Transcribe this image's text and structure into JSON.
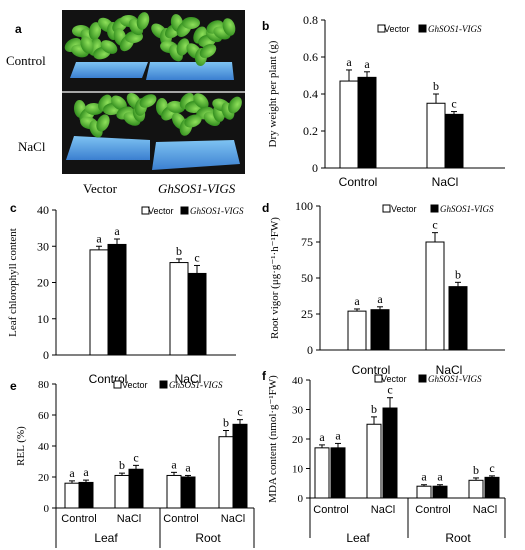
{
  "panel_a": {
    "letter": "a",
    "row_labels": [
      "Control",
      "NaCl"
    ],
    "column_labels": [
      "Vector",
      "GhSOS1-VIGS"
    ]
  },
  "chart_data": [
    {
      "panel": "b",
      "type": "bar",
      "ylabel": "Dry weight per plant (g)",
      "ylim": [
        0,
        0.8
      ],
      "yticks": [
        0,
        0.2,
        0.4,
        0.6,
        0.8
      ],
      "ytick_labels": [
        "0",
        "0.2",
        "0.4",
        "0.6",
        "0.8"
      ],
      "categories": [
        "Control",
        "NaCl"
      ],
      "legend": "top-right",
      "series": [
        {
          "name": "Vector",
          "color": "#ffffff",
          "values": [
            0.47,
            0.35
          ],
          "errors": [
            0.06,
            0.05
          ],
          "letters": [
            "a",
            "b"
          ]
        },
        {
          "name": "GhSOS1-VIGS",
          "color": "#000000",
          "values": [
            0.49,
            0.29
          ],
          "errors": [
            0.03,
            0.015
          ],
          "letters": [
            "a",
            "c"
          ]
        }
      ]
    },
    {
      "panel": "c",
      "type": "bar",
      "ylabel": "Leaf chlorophyll content",
      "ylim": [
        0,
        40
      ],
      "yticks": [
        0,
        10,
        20,
        30,
        40
      ],
      "ytick_labels": [
        "0",
        "10",
        "20",
        "30",
        "40"
      ],
      "categories": [
        "Control",
        "NaCl"
      ],
      "legend": "top-right",
      "series": [
        {
          "name": "Vector",
          "color": "#ffffff",
          "values": [
            29,
            25.5
          ],
          "errors": [
            1.0,
            1.0
          ],
          "letters": [
            "a",
            "b"
          ]
        },
        {
          "name": "GhSOS1-VIGS",
          "color": "#000000",
          "values": [
            30.5,
            22.5
          ],
          "errors": [
            1.5,
            2.2
          ],
          "letters": [
            "a",
            "c"
          ]
        }
      ]
    },
    {
      "panel": "d",
      "type": "bar",
      "ylabel": "Root vigor (μg·g⁻¹·h⁻¹FW)",
      "ylim": [
        0,
        100
      ],
      "yticks": [
        0,
        25,
        50,
        75,
        100
      ],
      "ytick_labels": [
        "0",
        "25",
        "50",
        "75",
        "100"
      ],
      "categories": [
        "Control",
        "NaCl"
      ],
      "legend": "top-right",
      "series": [
        {
          "name": "Vector",
          "color": "#ffffff",
          "values": [
            27,
            75
          ],
          "errors": [
            1.5,
            6.5
          ],
          "letters": [
            "a",
            "c"
          ]
        },
        {
          "name": "GhSOS1-VIGS",
          "color": "#000000",
          "values": [
            28,
            44
          ],
          "errors": [
            2.0,
            3.0
          ],
          "letters": [
            "a",
            "b"
          ]
        }
      ]
    },
    {
      "panel": "e",
      "type": "bar",
      "ylabel": "REL (%)",
      "ylim": [
        0,
        80
      ],
      "yticks": [
        0,
        20,
        40,
        60,
        80
      ],
      "ytick_labels": [
        "0",
        "20",
        "40",
        "60",
        "80"
      ],
      "categories": [
        "Control",
        "NaCl",
        "Control",
        "NaCl"
      ],
      "groups": [
        "Leaf",
        "Root"
      ],
      "legend": "top-right",
      "series": [
        {
          "name": "Vector",
          "color": "#ffffff",
          "values": [
            16,
            21,
            21,
            46
          ],
          "errors": [
            1.5,
            1.5,
            2.0,
            4.0
          ],
          "letters": [
            "a",
            "b",
            "a",
            "b"
          ]
        },
        {
          "name": "GhSOS1-VIGS",
          "color": "#000000",
          "values": [
            16.5,
            25,
            20,
            54
          ],
          "errors": [
            1.5,
            2.5,
            1.0,
            3.0
          ],
          "letters": [
            "a",
            "c",
            "a",
            "c"
          ]
        }
      ]
    },
    {
      "panel": "f",
      "type": "bar",
      "ylabel": "MDA content (nmol·g⁻¹FW)",
      "ylim": [
        0,
        40
      ],
      "yticks": [
        0,
        10,
        20,
        30,
        40
      ],
      "ytick_labels": [
        "0",
        "10",
        "20",
        "30",
        "40"
      ],
      "categories": [
        "Control",
        "NaCl",
        "Control",
        "NaCl"
      ],
      "groups": [
        "Leaf",
        "Root"
      ],
      "legend": "top-right",
      "series": [
        {
          "name": "Vector",
          "color": "#ffffff",
          "values": [
            17,
            25,
            4,
            6
          ],
          "errors": [
            1.0,
            2.5,
            0.5,
            0.8
          ],
          "letters": [
            "a",
            "b",
            "a",
            "b"
          ]
        },
        {
          "name": "GhSOS1-VIGS",
          "color": "#000000",
          "values": [
            17,
            30.5,
            4,
            7
          ],
          "errors": [
            1.5,
            3.5,
            0.5,
            0.5
          ],
          "letters": [
            "a",
            "c",
            "a",
            "c"
          ]
        }
      ]
    }
  ]
}
